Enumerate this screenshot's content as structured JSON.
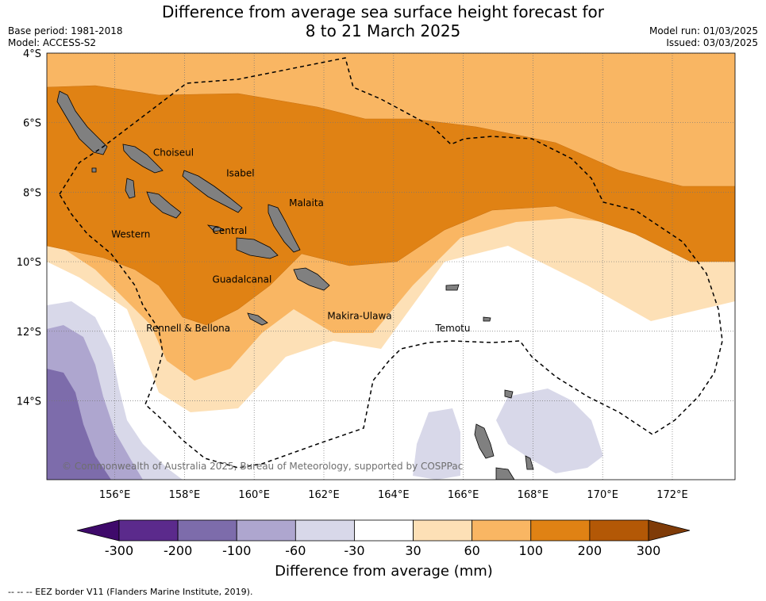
{
  "title_line1": "Difference from average sea surface height forecast for",
  "title_line2": "8 to 21 March 2025",
  "meta_left": {
    "base_period": "Base period: 1981-2018",
    "model": "Model: ACCESS-S2"
  },
  "meta_right": {
    "model_run": "Model run: 01/03/2025",
    "issued": "Issued: 03/03/2025"
  },
  "lat_ticks": [
    "4°S",
    "6°S",
    "8°S",
    "10°S",
    "12°S",
    "14°S"
  ],
  "lon_ticks": [
    "156°E",
    "158°E",
    "160°E",
    "162°E",
    "164°E",
    "166°E",
    "168°E",
    "170°E",
    "172°E"
  ],
  "place_labels": [
    {
      "name": "Choiseul",
      "lon": 157.1,
      "lat": -6.95
    },
    {
      "name": "Isabel",
      "lon": 159.2,
      "lat": -7.55
    },
    {
      "name": "Malaita",
      "lon": 161.0,
      "lat": -8.4
    },
    {
      "name": "Western",
      "lon": 155.9,
      "lat": -9.3
    },
    {
      "name": "Central",
      "lon": 158.8,
      "lat": -9.2
    },
    {
      "name": "Guadalcanal",
      "lon": 158.8,
      "lat": -10.6
    },
    {
      "name": "Makira-Ulawa",
      "lon": 162.1,
      "lat": -11.65
    },
    {
      "name": "Rennell & Bellona",
      "lon": 156.9,
      "lat": -12.0
    },
    {
      "name": "Temotu",
      "lon": 165.2,
      "lat": -12.0
    }
  ],
  "copyright": "© Commonwealth of Australia 2025, Bureau of Meteorology, supported by COSPPac",
  "colorbar": {
    "ticks": [
      "-300",
      "-200",
      "-100",
      "-60",
      "-30",
      "30",
      "60",
      "100",
      "200",
      "300"
    ],
    "colors": [
      "#3f0a6b",
      "#5b2a8c",
      "#7d6cab",
      "#aea6cf",
      "#d8d8e9",
      "#ffffff",
      "#fde0b6",
      "#f9b663",
      "#e08214",
      "#b35806",
      "#7f3b08"
    ],
    "label": "Difference from average (mm)"
  },
  "footer": "--  --  -- EEZ border V11 (Flanders Marine Institute, 2019).",
  "map_colors": {
    "land": "#808080",
    "eez": "#000000",
    "grid": "#777777"
  }
}
